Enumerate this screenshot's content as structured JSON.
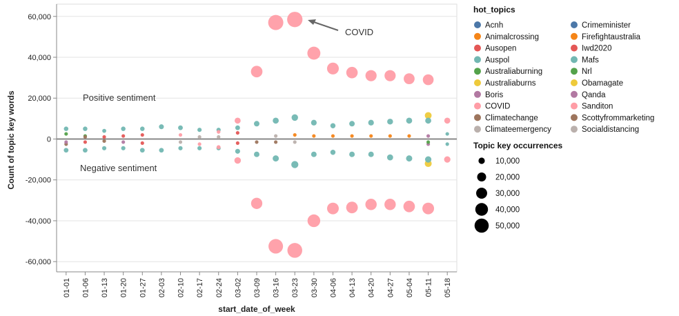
{
  "chart_data": {
    "type": "scatter",
    "xlabel": "start_date_of_week",
    "ylabel": "Count of topic key words",
    "ylim": [
      -65000,
      66000
    ],
    "yticks": [
      -60000,
      -40000,
      -20000,
      0,
      20000,
      40000,
      60000
    ],
    "ytick_labels": [
      "-60,000",
      "-40,000",
      "-20,000",
      "0",
      "20,000",
      "40,000",
      "60,000"
    ],
    "grid": true,
    "categories": [
      "01-01",
      "01-06",
      "01-13",
      "01-20",
      "01-27",
      "02-03",
      "02-10",
      "02-17",
      "02-24",
      "03-02",
      "03-09",
      "03-16",
      "03-23",
      "03-30",
      "04-06",
      "04-13",
      "04-20",
      "04-27",
      "05-04",
      "05-11",
      "05-18"
    ],
    "annotations": {
      "positive": "Positive sentiment",
      "negative": "Negative sentiment",
      "covid": "COVID"
    },
    "legend": {
      "title": "hot_topics",
      "items": [
        {
          "name": "Acnh",
          "color": "#4c78a8"
        },
        {
          "name": "Crimeminister",
          "color": "#4c78a8"
        },
        {
          "name": "Animalcrossing",
          "color": "#f58518"
        },
        {
          "name": "Firefightaustralia",
          "color": "#f58518"
        },
        {
          "name": "Ausopen",
          "color": "#e45756"
        },
        {
          "name": "Iwd2020",
          "color": "#e45756"
        },
        {
          "name": "Auspol",
          "color": "#72b7b2"
        },
        {
          "name": "Mafs",
          "color": "#72b7b2"
        },
        {
          "name": "Australiaburning",
          "color": "#54a24b"
        },
        {
          "name": "Nrl",
          "color": "#54a24b"
        },
        {
          "name": "Australiaburns",
          "color": "#eeca3b"
        },
        {
          "name": "Obamagate",
          "color": "#eeca3b"
        },
        {
          "name": "Boris",
          "color": "#b279a2"
        },
        {
          "name": "Qanda",
          "color": "#b279a2"
        },
        {
          "name": "COVID",
          "color": "#ff9da6"
        },
        {
          "name": "Sanditon",
          "color": "#ff9da6"
        },
        {
          "name": "Climatechange",
          "color": "#9d755d"
        },
        {
          "name": "Scottyfrommarketing",
          "color": "#9d755d"
        },
        {
          "name": "Climateemergency",
          "color": "#bab0ac"
        },
        {
          "name": "Socialdistancing",
          "color": "#bab0ac"
        }
      ]
    },
    "size_legend": {
      "title": "Topic key occurrences",
      "items": [
        {
          "label": "10,000",
          "value": 10000
        },
        {
          "label": "20,000",
          "value": 20000
        },
        {
          "label": "30,000",
          "value": 30000
        },
        {
          "label": "40,000",
          "value": 40000
        },
        {
          "label": "50,000",
          "value": 50000
        }
      ]
    },
    "series": [
      {
        "name": "COVID",
        "color": "#ff9da6",
        "points": [
          [
            "03-02",
            9000
          ],
          [
            "03-02",
            -10500
          ],
          [
            "03-09",
            33000
          ],
          [
            "03-09",
            -31500
          ],
          [
            "03-16",
            57000
          ],
          [
            "03-16",
            -52500
          ],
          [
            "03-23",
            58500
          ],
          [
            "03-23",
            -54500
          ],
          [
            "03-30",
            42000
          ],
          [
            "03-30",
            -40000
          ],
          [
            "04-06",
            34500
          ],
          [
            "04-06",
            -34000
          ],
          [
            "04-13",
            32500
          ],
          [
            "04-13",
            -33500
          ],
          [
            "04-20",
            31000
          ],
          [
            "04-20",
            -32000
          ],
          [
            "04-27",
            31000
          ],
          [
            "04-27",
            -32000
          ],
          [
            "05-04",
            29500
          ],
          [
            "05-04",
            -33000
          ],
          [
            "05-11",
            29000
          ],
          [
            "05-11",
            -34000
          ],
          [
            "05-18",
            9000
          ],
          [
            "05-18",
            -10000
          ]
        ]
      },
      {
        "name": "Auspol",
        "color": "#72b7b2",
        "points": [
          [
            "01-01",
            5000
          ],
          [
            "01-01",
            -5500
          ],
          [
            "01-06",
            5000
          ],
          [
            "01-06",
            -5500
          ],
          [
            "01-13",
            4000
          ],
          [
            "01-13",
            -4500
          ],
          [
            "01-20",
            5000
          ],
          [
            "01-20",
            -4500
          ],
          [
            "01-27",
            5000
          ],
          [
            "01-27",
            -5500
          ],
          [
            "02-03",
            6000
          ],
          [
            "02-03",
            -5500
          ],
          [
            "02-10",
            5500
          ],
          [
            "02-10",
            -4500
          ],
          [
            "02-17",
            4500
          ],
          [
            "02-17",
            -4500
          ],
          [
            "02-24",
            4500
          ],
          [
            "02-24",
            -4500
          ],
          [
            "03-02",
            5500
          ],
          [
            "03-02",
            -6000
          ],
          [
            "03-09",
            7500
          ],
          [
            "03-09",
            -7500
          ],
          [
            "03-16",
            9000
          ],
          [
            "03-16",
            -9500
          ],
          [
            "03-23",
            10500
          ],
          [
            "03-23",
            -12500
          ],
          [
            "03-30",
            8000
          ],
          [
            "03-30",
            -7500
          ],
          [
            "04-06",
            6500
          ],
          [
            "04-06",
            -6500
          ],
          [
            "04-13",
            7500
          ],
          [
            "04-13",
            -7500
          ],
          [
            "04-20",
            8000
          ],
          [
            "04-20",
            -7500
          ],
          [
            "04-27",
            8500
          ],
          [
            "04-27",
            -9000
          ],
          [
            "05-04",
            9000
          ],
          [
            "05-04",
            -9500
          ],
          [
            "05-11",
            9000
          ],
          [
            "05-11",
            -10000
          ],
          [
            "05-18",
            2500
          ],
          [
            "05-18",
            -2500
          ]
        ]
      },
      {
        "name": "Obamagate",
        "color": "#eeca3b",
        "points": [
          [
            "05-11",
            11500
          ],
          [
            "05-11",
            -12000
          ]
        ]
      },
      {
        "name": "Firefightaustralia",
        "color": "#f58518",
        "points": [
          [
            "03-23",
            2000
          ],
          [
            "03-30",
            1500
          ],
          [
            "04-06",
            1500
          ],
          [
            "04-13",
            1500
          ],
          [
            "04-20",
            1500
          ],
          [
            "04-27",
            1500
          ],
          [
            "05-04",
            1500
          ]
        ]
      },
      {
        "name": "Ausopen",
        "color": "#e45756",
        "points": [
          [
            "01-20",
            1500
          ],
          [
            "01-27",
            2000
          ],
          [
            "01-27",
            -2000
          ],
          [
            "01-13",
            1000
          ],
          [
            "01-06",
            -1500
          ]
        ]
      },
      {
        "name": "Qanda",
        "color": "#b279a2",
        "points": [
          [
            "01-01",
            -1500
          ],
          [
            "05-11",
            1500
          ],
          [
            "05-11",
            -2500
          ],
          [
            "01-20",
            -1500
          ]
        ]
      },
      {
        "name": "Climatechange",
        "color": "#9d755d",
        "points": [
          [
            "01-01",
            -2500
          ],
          [
            "01-06",
            1000
          ],
          [
            "03-09",
            -1500
          ],
          [
            "03-16",
            -1500
          ],
          [
            "01-13",
            -1000
          ]
        ]
      },
      {
        "name": "Australiaburning",
        "color": "#54a24b",
        "points": [
          [
            "01-01",
            2500
          ],
          [
            "01-06",
            1500
          ],
          [
            "05-11",
            -1500
          ]
        ]
      },
      {
        "name": "Socialdistancing",
        "color": "#bab0ac",
        "points": [
          [
            "03-16",
            1500
          ],
          [
            "03-23",
            -1500
          ],
          [
            "02-10",
            -1500
          ],
          [
            "02-17",
            1000
          ],
          [
            "02-24",
            1000
          ]
        ]
      },
      {
        "name": "Sanditon",
        "color": "#ff9da6",
        "points": [
          [
            "02-24",
            3500
          ],
          [
            "02-24",
            -4000
          ],
          [
            "02-10",
            2000
          ],
          [
            "02-17",
            -2500
          ]
        ]
      },
      {
        "name": "Iwd2020",
        "color": "#e45756",
        "points": [
          [
            "03-02",
            3000
          ],
          [
            "03-02",
            -2000
          ]
        ]
      }
    ]
  }
}
